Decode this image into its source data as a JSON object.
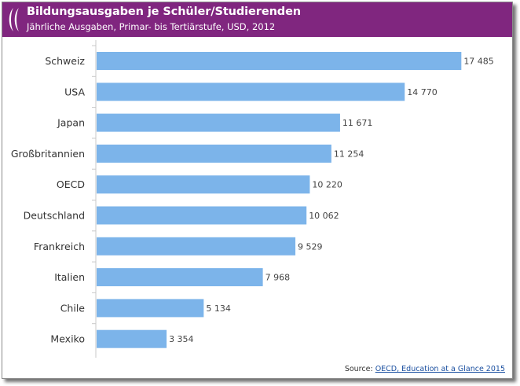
{
  "header": {
    "title": "Bildungsausgaben je Schüler/Studierenden",
    "subtitle": "Jährliche Ausgaben, Primar- bis Tertiärstufe, USD, 2012"
  },
  "source": {
    "prefix": "Source:",
    "link_text": "OECD, Education at a Glance 2015"
  },
  "colors": {
    "header_bg": "#80267f",
    "bar": "#7cb4ea",
    "link": "#1a4fa0"
  },
  "icons": {
    "logo": "oecd-logo-icon"
  },
  "chart_data": {
    "type": "bar",
    "orientation": "horizontal",
    "title": "Bildungsausgaben je Schüler/Studierenden",
    "subtitle": "Jährliche Ausgaben, Primar- bis Tertiärstufe, USD, 2012",
    "categories": [
      "Schweiz",
      "USA",
      "Japan",
      "Großbritannien",
      "OECD",
      "Deutschland",
      "Frankreich",
      "Italien",
      "Chile",
      "Mexiko"
    ],
    "values": [
      17485,
      14770,
      11671,
      11254,
      10220,
      10062,
      9529,
      7968,
      5134,
      3354
    ],
    "value_labels": [
      "17 485",
      "14 770",
      "11 671",
      "11 254",
      "10 220",
      "10 062",
      "9 529",
      "7 968",
      "5 134",
      "3 354"
    ],
    "xlim": [
      0,
      18000
    ],
    "grid": false,
    "legend": "none"
  }
}
